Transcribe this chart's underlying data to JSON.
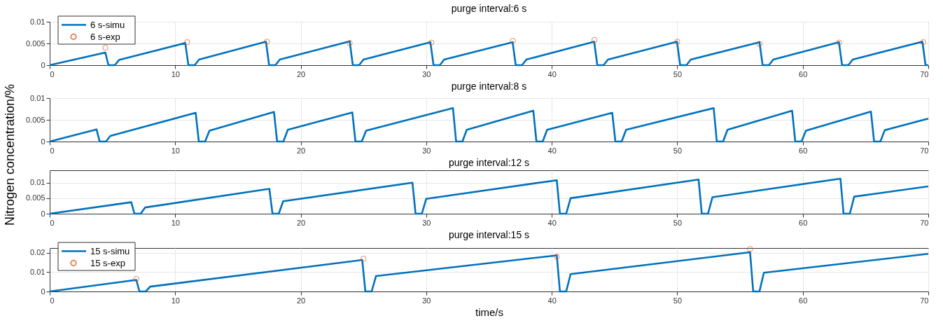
{
  "chart_data": [
    {
      "type": "line",
      "title": "purge interval:6 s",
      "ylabel": "Nitrogen concentration/%",
      "xlim": [
        0,
        70
      ],
      "xticks": [
        0,
        10,
        20,
        30,
        40,
        50,
        60,
        70
      ],
      "ylim": [
        0,
        0.01
      ],
      "yticks": [
        0,
        0.005,
        0.01
      ],
      "grid": true,
      "legend": "top left",
      "series": [
        {
          "name": "6 s-simu",
          "color": "#0072bd",
          "line_style": "solid",
          "x": [
            0,
            4.43,
            4.68,
            5.18,
            5.53,
            10.8,
            11.05,
            11.55,
            11.9,
            17.23,
            17.48,
            17.98,
            18.33,
            23.9,
            24.15,
            24.65,
            25.0,
            30.33,
            30.58,
            31.08,
            31.43,
            36.88,
            37.13,
            37.63,
            37.98,
            43.38,
            43.63,
            44.13,
            44.48,
            49.98,
            50.23,
            50.73,
            51.08,
            56.55,
            56.8,
            57.3,
            57.65,
            62.88,
            63.13,
            63.63,
            63.98,
            69.53,
            69.78,
            70
          ],
          "values": [
            0,
            0.0029,
            0,
            0,
            0.0012,
            0.0051,
            0,
            0,
            0.0013,
            0.0054,
            0,
            0,
            0.0013,
            0.0055,
            0,
            0,
            0.0013,
            0.0053,
            0,
            0,
            0.0013,
            0.0053,
            0,
            0,
            0.0013,
            0.0054,
            0,
            0,
            0.0013,
            0.0054,
            0,
            0,
            0.0013,
            0.0053,
            0,
            0,
            0.0013,
            0.0053,
            0,
            0,
            0.0013,
            0.0054,
            0,
            0
          ]
        },
        {
          "name": "6 s-exp",
          "type": "scatter",
          "color": "#d95319",
          "marker": "circle",
          "x": [
            4.43,
            10.95,
            17.3,
            23.9,
            30.4,
            36.9,
            43.4,
            50.0,
            56.55,
            62.9,
            69.6
          ],
          "values": [
            0.004,
            0.0053,
            0.0054,
            0.0051,
            0.0052,
            0.0056,
            0.0058,
            0.0054,
            0.0049,
            0.0052,
            0.0053
          ]
        }
      ]
    },
    {
      "type": "line",
      "title": "purge interval:8 s",
      "xlim": [
        0,
        70
      ],
      "xticks": [
        0,
        10,
        20,
        30,
        40,
        50,
        60,
        70
      ],
      "ylim": [
        0,
        0.01
      ],
      "yticks": [
        0,
        0.005,
        0.01
      ],
      "grid": true,
      "series": [
        {
          "color": "#0072bd",
          "line_style": "solid",
          "x": [
            0,
            3.73,
            3.98,
            4.48,
            4.83,
            11.63,
            11.88,
            12.38,
            12.73,
            17.87,
            18.12,
            18.62,
            18.97,
            24.11,
            24.36,
            24.86,
            25.21,
            32.13,
            32.38,
            32.88,
            33.23,
            38.53,
            38.78,
            39.28,
            39.63,
            44.82,
            45.07,
            45.57,
            45.92,
            52.9,
            53.15,
            53.65,
            54.0,
            59.15,
            59.4,
            59.9,
            60.25,
            65.43,
            65.68,
            66.18,
            66.53,
            70
          ],
          "values": [
            0,
            0.0028,
            0,
            0,
            0.0013,
            0.0066,
            0,
            0,
            0.0025,
            0.0068,
            0,
            0,
            0.0027,
            0.0067,
            0,
            0,
            0.0025,
            0.0077,
            0,
            0,
            0.0027,
            0.0071,
            0,
            0,
            0.0027,
            0.0066,
            0,
            0,
            0.0027,
            0.0077,
            0,
            0,
            0.0027,
            0.0071,
            0,
            0,
            0.0025,
            0.0069,
            0,
            0,
            0.0026,
            0.0053
          ]
        }
      ]
    },
    {
      "type": "line",
      "title": "purge interval:12 s",
      "xlim": [
        0,
        70
      ],
      "xticks": [
        0,
        10,
        20,
        30,
        40,
        50,
        60,
        70
      ],
      "ylim": [
        0,
        0.014
      ],
      "yticks": [
        0,
        0.005,
        0.01
      ],
      "grid": true,
      "series": [
        {
          "color": "#0072bd",
          "line_style": "solid",
          "x": [
            0,
            6.5,
            6.75,
            7.25,
            7.6,
            17.5,
            17.75,
            18.25,
            18.6,
            28.9,
            29.15,
            29.65,
            30.0,
            40.4,
            40.65,
            41.15,
            41.5,
            51.7,
            51.95,
            52.45,
            52.8,
            63.0,
            63.25,
            63.75,
            64.1,
            70
          ],
          "values": [
            0,
            0.0037,
            0,
            0,
            0.002,
            0.008,
            0,
            0,
            0.004,
            0.01,
            0,
            0,
            0.0048,
            0.0108,
            0,
            0,
            0.005,
            0.011,
            0,
            0,
            0.0053,
            0.0113,
            0,
            0,
            0.0055,
            0.0088
          ]
        }
      ]
    },
    {
      "type": "line",
      "title": "purge interval:15 s",
      "xlabel": "time/s",
      "xlim": [
        0,
        70
      ],
      "xticks": [
        0,
        10,
        20,
        30,
        40,
        50,
        60,
        70
      ],
      "ylim": [
        0,
        0.0225
      ],
      "yticks": [
        0,
        0.01,
        0.02
      ],
      "grid": true,
      "legend": "top left",
      "series": [
        {
          "name": "15 s-simu",
          "color": "#0072bd",
          "line_style": "solid",
          "x": [
            0,
            6.9,
            7.15,
            7.65,
            8.0,
            24.9,
            25.15,
            25.65,
            26.0,
            40.4,
            40.65,
            41.15,
            41.5,
            55.8,
            56.05,
            56.55,
            56.9,
            70
          ],
          "values": [
            0,
            0.006,
            0,
            0,
            0.0025,
            0.0163,
            0,
            0,
            0.008,
            0.0187,
            0,
            0,
            0.009,
            0.0203,
            0,
            0,
            0.0097,
            0.0195
          ]
        },
        {
          "name": "15 s-exp",
          "type": "scatter",
          "color": "#d95319",
          "marker": "circle",
          "x": [
            6.9,
            25.0,
            40.4,
            55.8
          ],
          "values": [
            0.0065,
            0.017,
            0.018,
            0.022
          ]
        }
      ]
    }
  ]
}
